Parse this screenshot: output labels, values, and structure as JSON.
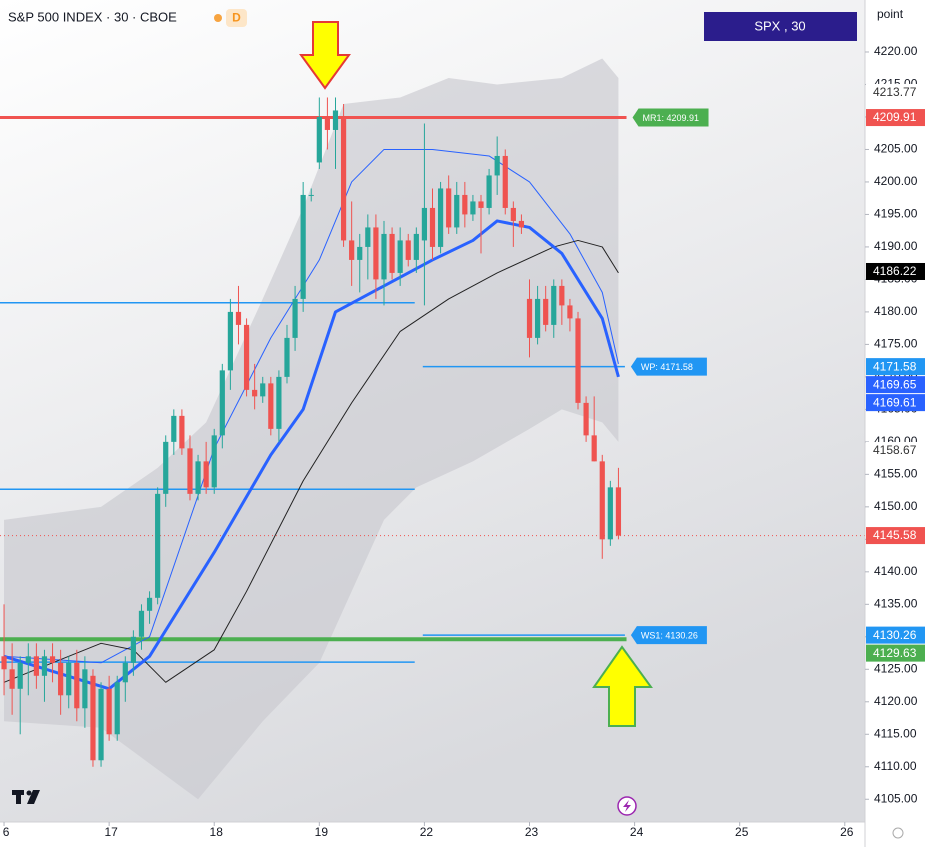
{
  "chart_data": {
    "type": "candlestick",
    "title": "S&P 500 INDEX · 30 · CBOE",
    "session_badge": "D",
    "symbol_box": "SPX , 30",
    "axis_unit": "point",
    "up_color": "#26a69a",
    "down_color": "#ef5350",
    "xlim": [
      -0.5,
      106.5
    ],
    "ylim": [
      4101.5,
      4228
    ],
    "xticks": [
      {
        "value": 0,
        "label": "6"
      },
      {
        "value": 13,
        "label": "17"
      },
      {
        "value": 26,
        "label": "18"
      },
      {
        "value": 39,
        "label": "19"
      },
      {
        "value": 52,
        "label": "22"
      },
      {
        "value": 65,
        "label": "23"
      },
      {
        "value": 78,
        "label": "24"
      },
      {
        "value": 91,
        "label": "25"
      },
      {
        "value": 104,
        "label": "26"
      }
    ],
    "yticks": [
      {
        "value": 4220,
        "label": "4220.00"
      },
      {
        "value": 4215,
        "label": "4215.00"
      },
      {
        "value": 4210,
        "label": "4210.00"
      },
      {
        "value": 4205,
        "label": "4205.00"
      },
      {
        "value": 4200,
        "label": "4200.00"
      },
      {
        "value": 4195,
        "label": "4195.00"
      },
      {
        "value": 4190,
        "label": "4190.00"
      },
      {
        "value": 4185,
        "label": "4185.00"
      },
      {
        "value": 4180,
        "label": "4180.00"
      },
      {
        "value": 4175,
        "label": "4175.00"
      },
      {
        "value": 4170,
        "label": "4170.00"
      },
      {
        "value": 4165,
        "label": "4165.00"
      },
      {
        "value": 4160,
        "label": "4160.00"
      },
      {
        "value": 4155,
        "label": "4155.00"
      },
      {
        "value": 4150,
        "label": "4150.00"
      },
      {
        "value": 4145,
        "label": "4145.00"
      },
      {
        "value": 4140,
        "label": "4140.00"
      },
      {
        "value": 4135,
        "label": "4135.00"
      },
      {
        "value": 4130,
        "label": "4130.00"
      },
      {
        "value": 4125,
        "label": "4125.00"
      },
      {
        "value": 4120,
        "label": "4120.00"
      },
      {
        "value": 4115,
        "label": "4115.00"
      },
      {
        "value": 4110,
        "label": "4110.00"
      },
      {
        "value": 4105,
        "label": "4105.00"
      }
    ],
    "x": [
      0,
      1,
      2,
      3,
      4,
      5,
      6,
      7,
      8,
      9,
      10,
      11,
      12,
      13,
      14,
      15,
      16,
      17,
      18,
      19,
      20,
      21,
      22,
      23,
      24,
      25,
      26,
      27,
      28,
      29,
      30,
      31,
      32,
      33,
      34,
      35,
      36,
      37,
      38,
      39,
      40,
      41,
      42,
      43,
      44,
      45,
      46,
      47,
      48,
      49,
      50,
      51,
      52,
      53,
      54,
      55,
      56,
      57,
      58,
      59,
      60,
      61,
      62,
      63,
      64,
      65,
      66,
      67,
      68,
      69,
      70,
      71,
      72,
      73,
      74,
      75,
      76
    ],
    "candles": [
      [
        4127,
        4135,
        4121,
        4125
      ],
      [
        4125,
        4129,
        4118,
        4122
      ],
      [
        4122,
        4127,
        4115,
        4126
      ],
      [
        4126,
        4129,
        4121,
        4127
      ],
      [
        4127,
        4129,
        4122,
        4124
      ],
      [
        4124,
        4128,
        4120,
        4127
      ],
      [
        4127,
        4129,
        4123,
        4126
      ],
      [
        4126,
        4128,
        4118,
        4121
      ],
      [
        4121,
        4127,
        4119,
        4126
      ],
      [
        4126,
        4128,
        4117,
        4119
      ],
      [
        4119,
        4127,
        4116,
        4125
      ],
      [
        4124,
        4125,
        4110,
        4111
      ],
      [
        4111,
        4123,
        4110,
        4122
      ],
      [
        4122,
        4124,
        4114,
        4115
      ],
      [
        4115,
        4124,
        4114,
        4123
      ],
      [
        4123,
        4127,
        4120,
        4126
      ],
      [
        4126,
        4131,
        4124,
        4130
      ],
      [
        4130,
        4135,
        4128,
        4134
      ],
      [
        4134,
        4137,
        4132,
        4136
      ],
      [
        4136,
        4153,
        4135,
        4152
      ],
      [
        4152,
        4161,
        4150,
        4160
      ],
      [
        4160,
        4165,
        4158,
        4164
      ],
      [
        4164,
        4165,
        4158,
        4159
      ],
      [
        4159,
        4161,
        4151,
        4152
      ],
      [
        4152,
        4158,
        4151,
        4157
      ],
      [
        4157,
        4160,
        4152,
        4153
      ],
      [
        4153,
        4162,
        4152,
        4161
      ],
      [
        4161,
        4172,
        4159,
        4171
      ],
      [
        4171,
        4182,
        4168,
        4180
      ],
      [
        4180,
        4184,
        4175,
        4178
      ],
      [
        4178,
        4179,
        4167,
        4168
      ],
      [
        4168,
        4172,
        4165,
        4167
      ],
      [
        4167,
        4170,
        4166,
        4169
      ],
      [
        4169,
        4170,
        4161,
        4162
      ],
      [
        4162,
        4171,
        4160,
        4170
      ],
      [
        4170,
        4178,
        4169,
        4176
      ],
      [
        4176,
        4184,
        4174,
        4182
      ],
      [
        4182,
        4200,
        4180,
        4198
      ],
      [
        4198,
        4199,
        4197,
        4198
      ],
      [
        4203,
        4213,
        4202,
        4210
      ],
      [
        4210,
        4213,
        4205,
        4208
      ],
      [
        4208,
        4213,
        4202,
        4211
      ],
      [
        4210,
        4212,
        4190,
        4191
      ],
      [
        4191,
        4197,
        4184,
        4188
      ],
      [
        4188,
        4192,
        4183,
        4190
      ],
      [
        4190,
        4195,
        4185,
        4193
      ],
      [
        4193,
        4195,
        4182,
        4185
      ],
      [
        4185,
        4194,
        4181,
        4192
      ],
      [
        4192,
        4193,
        4185,
        4186
      ],
      [
        4186,
        4193,
        4184,
        4191
      ],
      [
        4191,
        4192,
        4187,
        4188
      ],
      [
        4188,
        4193,
        4186,
        4192
      ],
      [
        4191,
        4209,
        4181,
        4196
      ],
      [
        4196,
        4199,
        4188,
        4190
      ],
      [
        4190,
        4200,
        4189,
        4199
      ],
      [
        4199,
        4201,
        4192,
        4193
      ],
      [
        4193,
        4200,
        4192,
        4198
      ],
      [
        4198,
        4200,
        4193,
        4195
      ],
      [
        4195,
        4198,
        4194,
        4197
      ],
      [
        4197,
        4198,
        4189,
        4196
      ],
      [
        4196,
        4202,
        4195,
        4201
      ],
      [
        4201,
        4207,
        4198,
        4204
      ],
      [
        4204,
        4205,
        4195,
        4196
      ],
      [
        4196,
        4197,
        4190,
        4194
      ],
      [
        4194,
        4195,
        4192,
        4193
      ],
      [
        4182,
        4185,
        4173,
        4176
      ],
      [
        4176,
        4184,
        4175,
        4182
      ],
      [
        4182,
        4184,
        4177,
        4178
      ],
      [
        4178,
        4185,
        4176,
        4184
      ],
      [
        4184,
        4185,
        4178,
        4181
      ],
      [
        4181,
        4182,
        4177,
        4179
      ],
      [
        4179,
        4180,
        4165,
        4166
      ],
      [
        4166,
        4167,
        4160,
        4161
      ],
      [
        4161,
        4167,
        4157,
        4157
      ],
      [
        4157,
        4158,
        4142,
        4145
      ],
      [
        4145,
        4154,
        4144,
        4153
      ],
      [
        4153,
        4156,
        4145,
        4145.58
      ]
    ],
    "band": {
      "color": "#c9cacf",
      "x_upper": [
        0,
        12,
        19,
        25,
        32,
        37,
        42,
        49,
        55,
        61,
        69,
        74,
        76
      ],
      "upper": [
        4148,
        4150,
        4156,
        4163,
        4182,
        4196,
        4212,
        4213,
        4216,
        4215,
        4216,
        4219,
        4216
      ],
      "x_lower": [
        76,
        74,
        69,
        65,
        58,
        51,
        47,
        39,
        32,
        24,
        12,
        0
      ],
      "lower": [
        4160,
        4163,
        4165,
        4162,
        4157,
        4153,
        4148,
        4126,
        4117,
        4105,
        4116,
        4117
      ]
    },
    "overlays": [
      {
        "color": "#2962ff",
        "width": 1,
        "x": [
          0,
          12,
          18,
          26,
          33,
          39,
          43,
          47,
          53,
          60,
          65,
          70,
          74,
          76
        ],
        "values": [
          4127,
          4126,
          4130,
          4159,
          4176,
          4188,
          4200,
          4205,
          4205,
          4204,
          4200,
          4192,
          4183,
          4172
        ]
      },
      {
        "color": "#222222",
        "width": 1,
        "x": [
          0,
          12,
          16,
          20,
          26,
          30,
          37,
          43,
          49,
          55,
          61,
          68,
          71,
          74,
          76
        ],
        "values": [
          4123,
          4129,
          4128,
          4123,
          4128,
          4137,
          4154,
          4166,
          4177,
          4182,
          4186,
          4190,
          4191,
          4190,
          4186
        ]
      },
      {
        "color": "#2962ff",
        "width": 3,
        "x": [
          0,
          13,
          18,
          26,
          33,
          37,
          41,
          47,
          53,
          58,
          61,
          65,
          69,
          74,
          76
        ],
        "values": [
          4127,
          4122,
          4127,
          4143,
          4158,
          4165,
          4180,
          4184,
          4188,
          4191,
          4194,
          4193,
          4189,
          4179,
          4170
        ]
      }
    ],
    "lines": [
      {
        "value": 4129.63,
        "color": "#4caf50",
        "width": 4,
        "x": [
          -0.5,
          77
        ]
      },
      {
        "value": 4181.4,
        "color": "#2196f3",
        "width": 1.5,
        "x": [
          -0.5,
          50.8
        ]
      },
      {
        "value": 4152.7,
        "color": "#2196f3",
        "width": 1.5,
        "x": [
          -0.5,
          50.8
        ]
      },
      {
        "value": 4126.1,
        "color": "#2196f3",
        "width": 1.5,
        "x": [
          -0.5,
          50.8
        ]
      }
    ],
    "levels": [
      {
        "value": 4209.91,
        "label": "MR1: 4209.91",
        "color": "#f05350",
        "badge": "#4caf50",
        "width": 3,
        "x": [
          -0.5,
          77
        ]
      },
      {
        "value": 4171.58,
        "label": "WP: 4171.58",
        "color": "#2196f3",
        "badge": "#2196f3",
        "width": 1.5,
        "x": [
          51.8,
          76.8
        ]
      },
      {
        "value": 4130.26,
        "label": "WS1: 4130.26",
        "color": "#2196f3",
        "badge": "#2196f3",
        "width": 1.5,
        "x": [
          51.8,
          76.8
        ]
      }
    ],
    "last_price": {
      "value": 4145.58,
      "color": "#ef5350"
    },
    "price_badges": [
      {
        "value": 4213.77,
        "bg": "#ffffff",
        "fg": "#333333"
      },
      {
        "value": 4209.91,
        "bg": "#f05350",
        "fg": "#ffffff"
      },
      {
        "value": 4186.22,
        "bg": "#000000",
        "fg": "#ffffff"
      },
      {
        "value": 4171.58,
        "bg": "#2196f3",
        "fg": "#ffffff"
      },
      {
        "value": 4169.65,
        "bg": "#2962ff",
        "fg": "#ffffff"
      },
      {
        "value": 4169.61,
        "bg": "#2962ff",
        "fg": "#ffffff"
      },
      {
        "value": 4158.67,
        "bg": "#ffffff",
        "fg": "#333333"
      },
      {
        "value": 4145.58,
        "bg": "#f05350",
        "fg": "#ffffff"
      },
      {
        "value": 4130.26,
        "bg": "#2196f3",
        "fg": "#ffffff"
      },
      {
        "value": 4129.63,
        "bg": "#4caf50",
        "fg": "#ffffff"
      }
    ]
  }
}
